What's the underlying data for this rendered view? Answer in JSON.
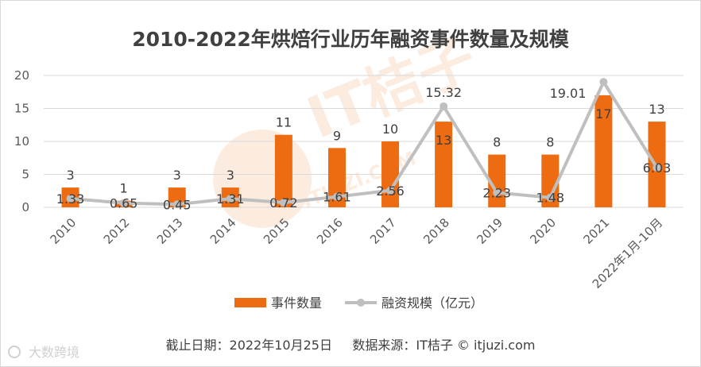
{
  "chart_data": {
    "type": "bar",
    "title": "2010-2022年烘焙行业历年融资事件数量及规模",
    "categories": [
      "2010",
      "2012",
      "2013",
      "2014",
      "2015",
      "2016",
      "2017",
      "2018",
      "2019",
      "2020",
      "2021",
      "2022年1月-10月"
    ],
    "ylim": [
      0,
      20
    ],
    "yticks": [
      0,
      5,
      10,
      15,
      20
    ],
    "grid": true,
    "legend_position": "bottom",
    "series": [
      {
        "name": "事件数量",
        "type": "bar",
        "color": "#ed6c12",
        "values": [
          3,
          1,
          3,
          3,
          11,
          9,
          10,
          13,
          8,
          8,
          17,
          13
        ],
        "labels": [
          "3",
          "1",
          "3",
          "3",
          "11",
          "9",
          "10",
          "13",
          "8",
          "8",
          "17",
          "13"
        ]
      },
      {
        "name": "融资规模（亿元）",
        "type": "line",
        "color": "#bfbfbf",
        "values": [
          1.33,
          0.65,
          0.45,
          1.31,
          0.72,
          1.61,
          2.56,
          15.32,
          2.23,
          1.48,
          19.01,
          6.03
        ],
        "labels": [
          "1.33",
          "0.65",
          "0.45",
          "1.31",
          "0.72",
          "1.61",
          "2.56",
          "15.32",
          "2.23",
          "1.48",
          "19.01",
          "6.03"
        ]
      }
    ]
  },
  "footer": {
    "text": "截止日期：2022年10月25日     数据来源：IT桔子 © itjuzi.com"
  },
  "watermarks": {
    "corner": "大数跨境",
    "center_logo": "IT桔子",
    "center_url": "ITJUZI.COM"
  }
}
